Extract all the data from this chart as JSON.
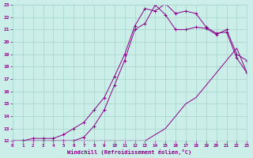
{
  "xlabel": "Windchill (Refroidissement éolien,°C)",
  "bg_color": "#cceee8",
  "grid_color": "#aad8d0",
  "line_color": "#880088",
  "xlim": [
    0,
    23
  ],
  "ylim": [
    12,
    23
  ],
  "xticks": [
    0,
    1,
    2,
    3,
    4,
    5,
    6,
    7,
    8,
    9,
    10,
    11,
    12,
    13,
    14,
    15,
    16,
    17,
    18,
    19,
    20,
    21,
    22,
    23
  ],
  "yticks": [
    12,
    13,
    14,
    15,
    16,
    17,
    18,
    19,
    20,
    21,
    22,
    23
  ],
  "line1_x": [
    0,
    1,
    2,
    3,
    4,
    5,
    6,
    7,
    8,
    9,
    10,
    11,
    12,
    13,
    14,
    15,
    16,
    17,
    18,
    19,
    20,
    21,
    22,
    23
  ],
  "line1_y": [
    12,
    12,
    12,
    12,
    12,
    12,
    12,
    12,
    12,
    12,
    12,
    12,
    12,
    12,
    12.5,
    13,
    14,
    15,
    15.5,
    16.5,
    17.5,
    18.5,
    19.5,
    17.5
  ],
  "line2_x": [
    0,
    1,
    2,
    3,
    4,
    5,
    6,
    7,
    8,
    9,
    10,
    11,
    12,
    13,
    14,
    15,
    16,
    17,
    18,
    19,
    20,
    21,
    22,
    23
  ],
  "line2_y": [
    12,
    12,
    12.2,
    12.2,
    12.2,
    12.5,
    13,
    13.5,
    14.5,
    15.5,
    17.2,
    19.0,
    21.3,
    22.7,
    22.5,
    23.1,
    22.3,
    22.5,
    22.3,
    21.2,
    20.7,
    20.8,
    18.7,
    17.5
  ],
  "line3_x": [
    0,
    1,
    2,
    3,
    4,
    5,
    6,
    7,
    8,
    9,
    10,
    11,
    12,
    13,
    14,
    15,
    16,
    17,
    18,
    19,
    20,
    21,
    22,
    23
  ],
  "line3_y": [
    12,
    12,
    12,
    12,
    12,
    12,
    12,
    12.3,
    13.2,
    14.5,
    16.5,
    18.5,
    21.0,
    21.5,
    23.0,
    22.2,
    21.0,
    21.0,
    21.2,
    21.1,
    20.6,
    21.0,
    19.0,
    18.5
  ]
}
